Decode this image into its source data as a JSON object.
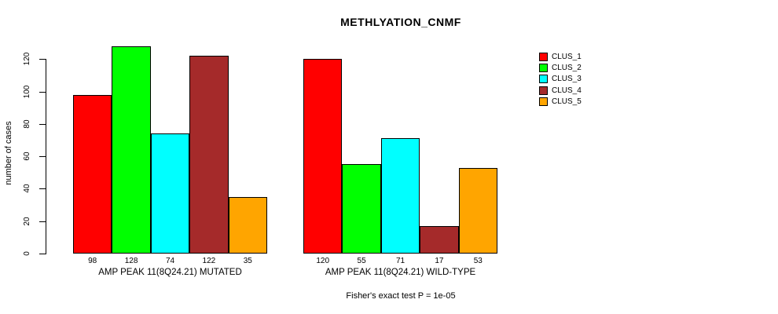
{
  "chart_data": {
    "type": "bar",
    "title": "METHLYATION_CNMF",
    "ylabel": "number of cases",
    "xlabel": "",
    "ylim": [
      0,
      130
    ],
    "yticks": [
      0,
      20,
      40,
      60,
      80,
      100,
      120
    ],
    "grid": false,
    "legend_position": "right",
    "series_colors": [
      "#FF0000",
      "#00FF00",
      "#00FFFF",
      "#A52A2A",
      "#FFA500"
    ],
    "legend": [
      {
        "name": "CLUS_1",
        "color": "#FF0000"
      },
      {
        "name": "CLUS_2",
        "color": "#00FF00"
      },
      {
        "name": "CLUS_3",
        "color": "#00FFFF"
      },
      {
        "name": "CLUS_4",
        "color": "#A52A2A"
      },
      {
        "name": "CLUS_5",
        "color": "#FFA500"
      }
    ],
    "groups": [
      {
        "label": "AMP PEAK 11(8Q24.21) MUTATED",
        "categories": [
          "CLUS_1",
          "CLUS_2",
          "CLUS_3",
          "CLUS_4",
          "CLUS_5"
        ],
        "values": [
          98,
          128,
          74,
          122,
          35
        ]
      },
      {
        "label": "AMP PEAK 11(8Q24.21) WILD-TYPE",
        "categories": [
          "CLUS_1",
          "CLUS_2",
          "CLUS_3",
          "CLUS_4",
          "CLUS_5"
        ],
        "values": [
          120,
          55,
          71,
          17,
          53
        ]
      }
    ],
    "annotation": "Fisher's exact test P = 1e-05"
  }
}
